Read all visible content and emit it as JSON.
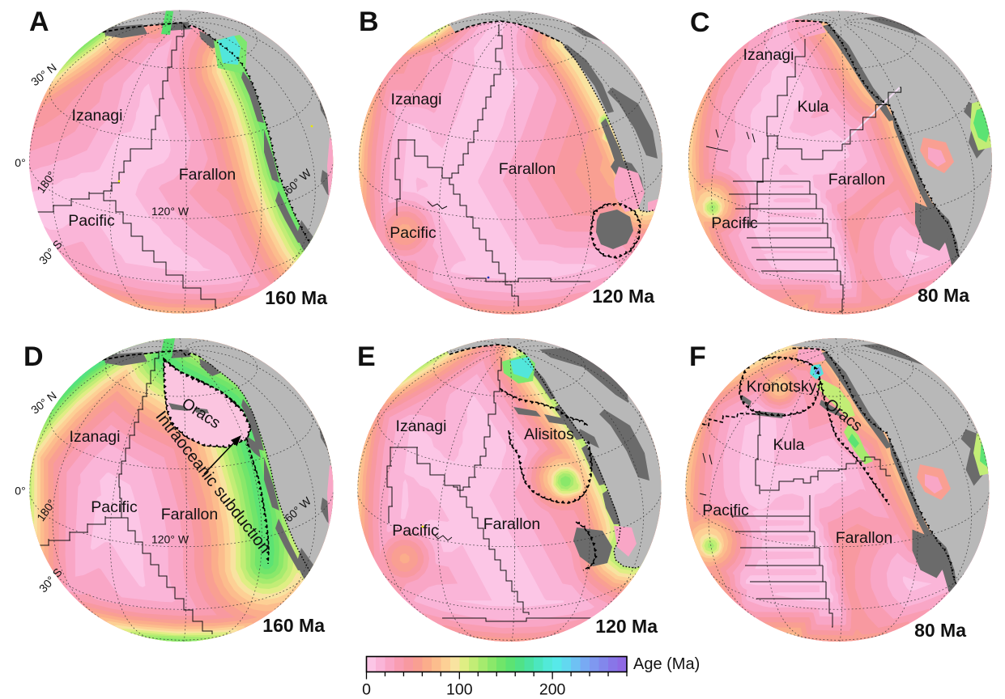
{
  "figure": {
    "background": "#ffffff",
    "description": "Plate tectonic reconstructions of the Panthalassa/Pacific basin at 160, 120 and 80 Ma; top row conventional model, bottom row with intra-oceanic subduction"
  },
  "panels": [
    {
      "letter": "A",
      "time": "160 Ma",
      "plates": {
        "izanagi": "Izanagi",
        "farallon": "Farallon",
        "pacific": "Pacific"
      },
      "graticule": {
        "lat30n": "30° N",
        "eq": "0°",
        "lon180": "180°",
        "lon120w": "120° W",
        "lon60w": "60° W",
        "lat30s": "30° S"
      }
    },
    {
      "letter": "B",
      "time": "120 Ma",
      "plates": {
        "izanagi": "Izanagi",
        "farallon": "Farallon",
        "pacific": "Pacific"
      }
    },
    {
      "letter": "C",
      "time": "80 Ma",
      "plates": {
        "izanagi": "Izanagi",
        "kula": "Kula",
        "farallon": "Farallon",
        "pacific": "Pacific"
      }
    },
    {
      "letter": "D",
      "time": "160 Ma",
      "plates": {
        "izanagi": "Izanagi",
        "oracs": "Oracs",
        "farallon": "Farallon",
        "pacific": "Pacific"
      },
      "annotation": "Intraoceanic subduction",
      "graticule": {
        "lat30n": "30° N",
        "eq": "0°",
        "lon180": "180°",
        "lon120w": "120° W",
        "lon60w": "60° W",
        "lat30s": "30° S"
      }
    },
    {
      "letter": "E",
      "time": "120 Ma",
      "plates": {
        "izanagi": "Izanagi",
        "alisitos": "Alisitos",
        "farallon": "Farallon",
        "pacific": "Pacific"
      }
    },
    {
      "letter": "F",
      "time": "80 Ma",
      "plates": {
        "kronotsky": "Kronotsky",
        "oracs": "Oracs",
        "kula": "Kula",
        "farallon": "Farallon",
        "pacific": "Pacific"
      }
    }
  ],
  "colorbar": {
    "title": "Age (Ma)",
    "range": [
      0,
      280
    ],
    "band_step": 10,
    "major_ticks": [
      0,
      100,
      200
    ],
    "tick_labels": [
      "0",
      "100",
      "200"
    ],
    "minor_tick_step": 20,
    "colors": [
      "#fcc6e6",
      "#fab5d8",
      "#f9a6c6",
      "#f99db2",
      "#f899a0",
      "#f99f92",
      "#fbad8b",
      "#fcbd8d",
      "#fdd095",
      "#f8e3a0",
      "#dfee84",
      "#c2ed76",
      "#a5eb6e",
      "#8ae86a",
      "#70e56a",
      "#5ce373",
      "#50e287",
      "#4be3a2",
      "#4ce6bf",
      "#52e9d8",
      "#57e9e9",
      "#62d8f0",
      "#6ec1f3",
      "#78aaf3",
      "#7f98f0",
      "#8287ec",
      "#8876e8",
      "#8f6ae4"
    ]
  },
  "colors": {
    "land_light": "#b8b8b8",
    "land_dark": "#6b6b6b",
    "ocean_youngest": "#fcc6e6",
    "boundary": "#000000"
  },
  "chart_data": {
    "type": "map",
    "title": "Seafloor age reconstructions (orthographic globes)",
    "legend": {
      "label": "Age (Ma)",
      "min": 0,
      "max": 280,
      "major_ticks": [
        0,
        100,
        200
      ],
      "minor_tick_step": 20,
      "band_step_ma": 10,
      "band_colors": [
        "#fcc6e6",
        "#fab5d8",
        "#f9a6c6",
        "#f99db2",
        "#f899a0",
        "#f99f92",
        "#fbad8b",
        "#fcbd8d",
        "#fdd095",
        "#f8e3a0",
        "#dfee84",
        "#c2ed76",
        "#a5eb6e",
        "#8ae86a",
        "#70e56a",
        "#5ce373",
        "#50e287",
        "#4be3a2",
        "#4ce6bf",
        "#52e9d8",
        "#57e9e9",
        "#62d8f0",
        "#6ec1f3",
        "#78aaf3",
        "#7f98f0",
        "#8287ec",
        "#8876e8",
        "#8f6ae4"
      ]
    },
    "panels": [
      {
        "id": "A",
        "age_ma": 160,
        "plates": [
          "Izanagi",
          "Farallon",
          "Pacific"
        ]
      },
      {
        "id": "B",
        "age_ma": 120,
        "plates": [
          "Izanagi",
          "Farallon",
          "Pacific"
        ]
      },
      {
        "id": "C",
        "age_ma": 80,
        "plates": [
          "Izanagi",
          "Kula",
          "Farallon",
          "Pacific"
        ]
      },
      {
        "id": "D",
        "age_ma": 160,
        "plates": [
          "Izanagi",
          "Oracs",
          "Farallon",
          "Pacific"
        ],
        "annotation": "Intraoceanic subduction"
      },
      {
        "id": "E",
        "age_ma": 120,
        "plates": [
          "Izanagi",
          "Alisitos",
          "Farallon",
          "Pacific"
        ]
      },
      {
        "id": "F",
        "age_ma": 80,
        "plates": [
          "Kronotsky",
          "Oracs",
          "Kula",
          "Farallon",
          "Pacific"
        ]
      }
    ]
  }
}
